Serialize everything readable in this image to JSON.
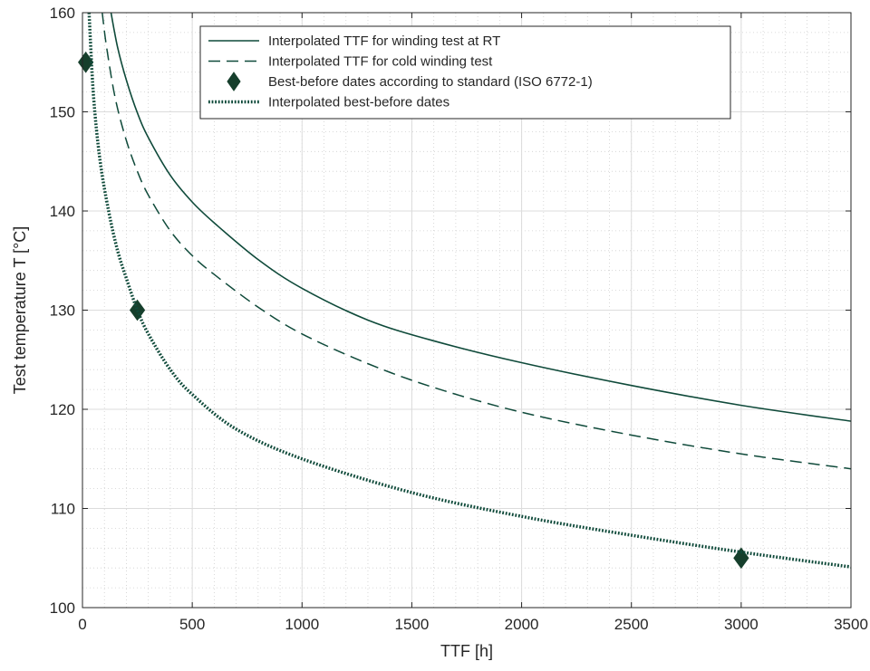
{
  "colors": {
    "series": "#0f4a3a",
    "marker": "#163f2c",
    "grid_major": "#dcdcdc",
    "grid_minor": "#cfcfcf",
    "axis": "#262626"
  },
  "chart_data": {
    "type": "line",
    "xlabel": "TTF [h]",
    "ylabel": "Test temperature T [°C]",
    "xlim": [
      0,
      3500
    ],
    "ylim": [
      100,
      160
    ],
    "x_ticks": [
      0,
      500,
      1000,
      1500,
      2000,
      2500,
      3000,
      3500
    ],
    "y_ticks": [
      100,
      110,
      120,
      130,
      140,
      150,
      160
    ],
    "grid": true,
    "minor_grid": true,
    "legend_position": "top-right",
    "series": [
      {
        "name": "Interpolated TTF for winding test at RT",
        "style": "solid",
        "x": [
          130,
          160,
          200,
          250,
          300,
          400,
          500,
          600,
          800,
          1000,
          1300,
          1600,
          2000,
          2500,
          3000,
          3500
        ],
        "y": [
          160,
          156.5,
          153.2,
          149.9,
          147.4,
          143.6,
          140.9,
          138.8,
          135.1,
          132.2,
          129,
          126.9,
          124.7,
          122.4,
          120.4,
          118.8
        ]
      },
      {
        "name": "Interpolated TTF for cold winding test",
        "style": "dashed",
        "x": [
          90,
          110,
          150,
          200,
          250,
          300,
          400,
          500,
          600,
          800,
          1000,
          1300,
          1600,
          2000,
          2500,
          3000,
          3500
        ],
        "y": [
          160,
          156.5,
          151.3,
          147.1,
          144,
          141.6,
          138,
          135.5,
          133.6,
          130.3,
          127.6,
          124.6,
          122.2,
          119.7,
          117.4,
          115.5,
          114
        ]
      },
      {
        "name": "Best-before dates according to standard (ISO 6772-1)",
        "style": "markers",
        "x": [
          15,
          250,
          3000
        ],
        "y": [
          155,
          130,
          105
        ]
      },
      {
        "name": "Interpolated best-before dates",
        "style": "dotted",
        "x": [
          30,
          50,
          80,
          120,
          160,
          200,
          250,
          300,
          400,
          500,
          700,
          1000,
          1500,
          2000,
          2500,
          3000,
          3500
        ],
        "y": [
          160,
          151.7,
          145.1,
          139.9,
          136,
          133.2,
          130,
          127.6,
          124,
          121.5,
          118,
          115,
          111.6,
          109.2,
          107.3,
          105.6,
          104.1
        ]
      }
    ]
  }
}
